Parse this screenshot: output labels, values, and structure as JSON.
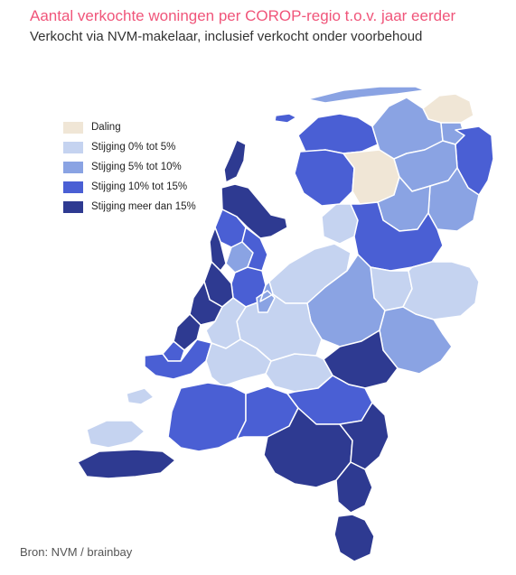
{
  "title": "Aantal verkochte woningen per COROP-regio t.o.v. jaar eerder",
  "subtitle": "Verkocht via NVM-makelaar, inclusief verkocht onder voorbehoud",
  "source": "Bron: NVM / brainbay",
  "legend": [
    {
      "label": "Daling",
      "color": "#f0e6d6"
    },
    {
      "label": "Stijging  0% tot 5%",
      "color": "#c5d3f0"
    },
    {
      "label": "Stijging  5% tot 10%",
      "color": "#8aa3e3"
    },
    {
      "label": "Stijging  10% tot 15%",
      "color": "#4a5fd4"
    },
    {
      "label": "Stijging meer dan 15%",
      "color": "#2e3a91"
    }
  ]
}
